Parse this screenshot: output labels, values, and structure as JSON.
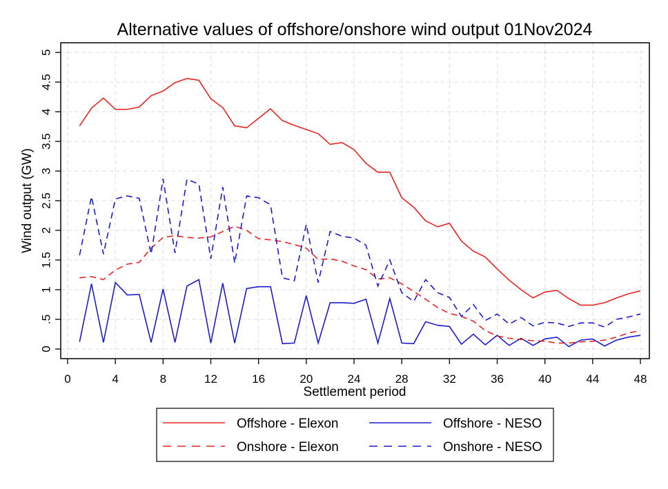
{
  "chart_data": {
    "type": "line",
    "title": "Alternative values of offshore/onshore wind output 01Nov2024",
    "xlabel": "Settlement period",
    "ylabel": "Wind output (GW)",
    "xlim": [
      0,
      48
    ],
    "ylim": [
      0,
      5
    ],
    "x_ticks": [
      0,
      4,
      8,
      12,
      16,
      20,
      24,
      28,
      32,
      36,
      40,
      44,
      48
    ],
    "y_ticks": [
      0,
      0.5,
      1,
      1.5,
      2,
      2.5,
      3,
      3.5,
      4,
      4.5,
      5
    ],
    "y_tick_labels": [
      "0",
      ".5",
      "1",
      "1.5",
      "2",
      "2.5",
      "3",
      "3.5",
      "4",
      "4.5",
      "5"
    ],
    "grid": true,
    "legend_position": "bottom",
    "x": [
      1,
      2,
      3,
      4,
      5,
      6,
      7,
      8,
      9,
      10,
      11,
      12,
      13,
      14,
      15,
      16,
      17,
      18,
      19,
      20,
      21,
      22,
      23,
      24,
      25,
      26,
      27,
      28,
      29,
      30,
      31,
      32,
      33,
      34,
      35,
      36,
      37,
      38,
      39,
      40,
      41,
      42,
      43,
      44,
      45,
      46,
      47,
      48
    ],
    "series": [
      {
        "name": "Offshore - Elexon",
        "color": "#e8231f",
        "dash": "solid",
        "values": [
          3.76,
          4.06,
          4.23,
          4.04,
          4.04,
          4.08,
          4.27,
          4.35,
          4.49,
          4.56,
          4.53,
          4.22,
          4.07,
          3.76,
          3.73,
          3.89,
          4.05,
          3.85,
          3.77,
          3.7,
          3.63,
          3.45,
          3.48,
          3.36,
          3.13,
          2.98,
          2.98,
          2.55,
          2.39,
          2.16,
          2.06,
          2.12,
          1.82,
          1.65,
          1.55,
          1.35,
          1.16,
          1.0,
          0.86,
          0.96,
          0.99,
          0.85,
          0.74,
          0.74,
          0.78,
          0.86,
          0.93,
          0.98
        ]
      },
      {
        "name": "Offshore - NESO",
        "color": "#1a1ad0",
        "dash": "solid",
        "values": [
          0.12,
          1.1,
          0.11,
          1.12,
          0.91,
          0.92,
          0.11,
          1.01,
          0.11,
          1.06,
          1.17,
          0.1,
          1.11,
          0.1,
          1.02,
          1.05,
          1.05,
          0.09,
          0.1,
          0.9,
          0.1,
          0.78,
          0.78,
          0.77,
          0.84,
          0.1,
          0.85,
          0.1,
          0.09,
          0.46,
          0.4,
          0.38,
          0.08,
          0.25,
          0.07,
          0.23,
          0.06,
          0.18,
          0.06,
          0.17,
          0.2,
          0.04,
          0.15,
          0.17,
          0.05,
          0.15,
          0.2,
          0.23
        ]
      },
      {
        "name": "Onshore - Elexon",
        "color": "#e8231f",
        "dash": "dashed",
        "values": [
          1.2,
          1.22,
          1.17,
          1.33,
          1.43,
          1.46,
          1.7,
          1.88,
          1.91,
          1.88,
          1.87,
          1.89,
          1.98,
          2.07,
          2.0,
          1.86,
          1.84,
          1.81,
          1.76,
          1.7,
          1.51,
          1.52,
          1.48,
          1.4,
          1.34,
          1.18,
          1.2,
          1.1,
          0.97,
          0.84,
          0.7,
          0.6,
          0.55,
          0.47,
          0.31,
          0.22,
          0.18,
          0.16,
          0.14,
          0.13,
          0.1,
          0.1,
          0.12,
          0.13,
          0.15,
          0.2,
          0.27,
          0.31
        ]
      },
      {
        "name": "Onshore - NESO",
        "color": "#1a1ad0",
        "dash": "dashed",
        "values": [
          1.58,
          2.57,
          1.6,
          2.53,
          2.58,
          2.54,
          1.6,
          2.87,
          1.62,
          2.86,
          2.78,
          1.52,
          2.73,
          1.45,
          2.58,
          2.55,
          2.43,
          1.2,
          1.15,
          2.1,
          1.12,
          1.98,
          1.9,
          1.87,
          1.75,
          1.06,
          1.5,
          0.95,
          0.8,
          1.17,
          0.95,
          0.87,
          0.55,
          0.75,
          0.48,
          0.59,
          0.42,
          0.53,
          0.39,
          0.45,
          0.44,
          0.38,
          0.44,
          0.44,
          0.37,
          0.5,
          0.54,
          0.59
        ]
      }
    ]
  }
}
